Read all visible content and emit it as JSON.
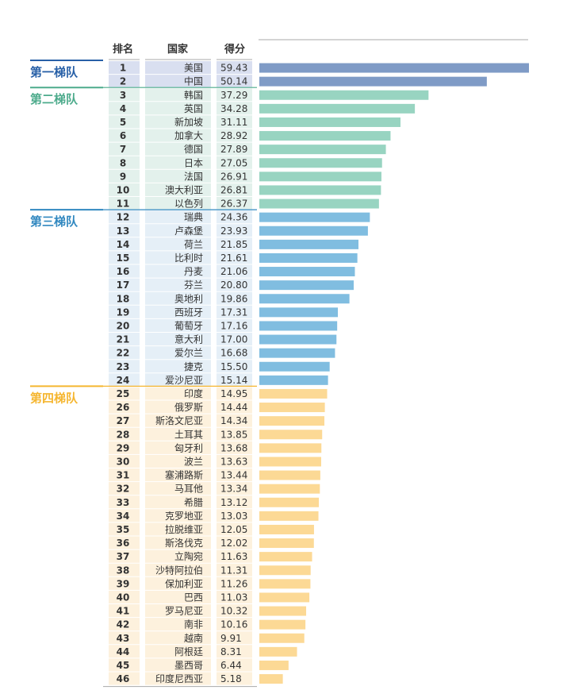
{
  "chart_data": {
    "type": "bar",
    "orientation": "horizontal",
    "columns": {
      "rank": "排名",
      "country": "国家",
      "score": "得分"
    },
    "xlim": [
      0,
      59.43
    ],
    "grid": false,
    "legend": "none",
    "tiers": [
      {
        "name": "第一梯队",
        "color": "#7f9bc6",
        "label_color": "#2860a7",
        "band_color": "#d9dff0",
        "start_rank": 1,
        "end_rank": 2
      },
      {
        "name": "第二梯队",
        "color": "#98d4c1",
        "label_color": "#4dab8c",
        "band_color": "#e3f1ec",
        "start_rank": 3,
        "end_rank": 11
      },
      {
        "name": "第三梯队",
        "color": "#80bde0",
        "label_color": "#3188c0",
        "band_color": "#e5eff7",
        "start_rank": 12,
        "end_rank": 24
      },
      {
        "name": "第四梯队",
        "color": "#fcd995",
        "label_color": "#f5b630",
        "band_color": "#fdf1dd",
        "start_rank": 25,
        "end_rank": 46
      }
    ],
    "rows": [
      {
        "rank": "1",
        "country": "美国",
        "score": "59.43",
        "value": 59.43
      },
      {
        "rank": "2",
        "country": "中国",
        "score": "50.14",
        "value": 50.14
      },
      {
        "rank": "3",
        "country": "韩国",
        "score": "37.29",
        "value": 37.29
      },
      {
        "rank": "4",
        "country": "英国",
        "score": "34.28",
        "value": 34.28
      },
      {
        "rank": "5",
        "country": "新加坡",
        "score": "31.11",
        "value": 31.11
      },
      {
        "rank": "6",
        "country": "加拿大",
        "score": "28.92",
        "value": 28.92
      },
      {
        "rank": "7",
        "country": "德国",
        "score": "27.89",
        "value": 27.89
      },
      {
        "rank": "8",
        "country": "日本",
        "score": "27.05",
        "value": 27.05
      },
      {
        "rank": "9",
        "country": "法国",
        "score": "26.91",
        "value": 26.91
      },
      {
        "rank": "10",
        "country": "澳大利亚",
        "score": "26.81",
        "value": 26.81
      },
      {
        "rank": "11",
        "country": "以色列",
        "score": "26.37",
        "value": 26.37
      },
      {
        "rank": "12",
        "country": "瑞典",
        "score": "24.36",
        "value": 24.36
      },
      {
        "rank": "13",
        "country": "卢森堡",
        "score": "23.93",
        "value": 23.93
      },
      {
        "rank": "14",
        "country": "荷兰",
        "score": "21.85",
        "value": 21.85
      },
      {
        "rank": "15",
        "country": "比利时",
        "score": "21.61",
        "value": 21.61
      },
      {
        "rank": "16",
        "country": "丹麦",
        "score": "21.06",
        "value": 21.06
      },
      {
        "rank": "17",
        "country": "芬兰",
        "score": "20.80",
        "value": 20.8
      },
      {
        "rank": "18",
        "country": "奥地利",
        "score": "19.86",
        "value": 19.86
      },
      {
        "rank": "19",
        "country": "西班牙",
        "score": "17.31",
        "value": 17.31
      },
      {
        "rank": "20",
        "country": "葡萄牙",
        "score": "17.16",
        "value": 17.16
      },
      {
        "rank": "21",
        "country": "意大利",
        "score": "17.00",
        "value": 17.0
      },
      {
        "rank": "22",
        "country": "爱尔兰",
        "score": "16.68",
        "value": 16.68
      },
      {
        "rank": "23",
        "country": "捷克",
        "score": "15.50",
        "value": 15.5
      },
      {
        "rank": "24",
        "country": "爱沙尼亚",
        "score": "15.14",
        "value": 15.14
      },
      {
        "rank": "25",
        "country": "印度",
        "score": "14.95",
        "value": 14.95
      },
      {
        "rank": "26",
        "country": "俄罗斯",
        "score": "14.44",
        "value": 14.44
      },
      {
        "rank": "27",
        "country": "斯洛文尼亚",
        "score": "14.34",
        "value": 14.34
      },
      {
        "rank": "28",
        "country": "土耳其",
        "score": "13.85",
        "value": 13.85
      },
      {
        "rank": "29",
        "country": "匈牙利",
        "score": "13.68",
        "value": 13.68
      },
      {
        "rank": "30",
        "country": "波兰",
        "score": "13.63",
        "value": 13.63
      },
      {
        "rank": "31",
        "country": "塞浦路斯",
        "score": "13.44",
        "value": 13.44
      },
      {
        "rank": "32",
        "country": "马耳他",
        "score": "13.34",
        "value": 13.34
      },
      {
        "rank": "33",
        "country": "希腊",
        "score": "13.12",
        "value": 13.12
      },
      {
        "rank": "34",
        "country": "克罗地亚",
        "score": "13.03",
        "value": 13.03
      },
      {
        "rank": "35",
        "country": "拉脱维亚",
        "score": "12.05",
        "value": 12.05
      },
      {
        "rank": "36",
        "country": "斯洛伐克",
        "score": "12.02",
        "value": 12.02
      },
      {
        "rank": "37",
        "country": "立陶宛",
        "score": "11.63",
        "value": 11.63
      },
      {
        "rank": "38",
        "country": "沙特阿拉伯",
        "score": "11.31",
        "value": 11.31
      },
      {
        "rank": "39",
        "country": "保加利亚",
        "score": "11.26",
        "value": 11.26
      },
      {
        "rank": "40",
        "country": "巴西",
        "score": "11.03",
        "value": 11.03
      },
      {
        "rank": "41",
        "country": "罗马尼亚",
        "score": "10.32",
        "value": 10.32
      },
      {
        "rank": "42",
        "country": "南非",
        "score": "10.16",
        "value": 10.16
      },
      {
        "rank": "43",
        "country": "越南",
        "score": "9.91",
        "value": 9.91
      },
      {
        "rank": "44",
        "country": "阿根廷",
        "score": "8.31",
        "value": 8.31
      },
      {
        "rank": "45",
        "country": "墨西哥",
        "score": "6.44",
        "value": 6.44
      },
      {
        "rank": "46",
        "country": "印度尼西亚",
        "score": "5.18",
        "value": 5.18
      }
    ]
  }
}
